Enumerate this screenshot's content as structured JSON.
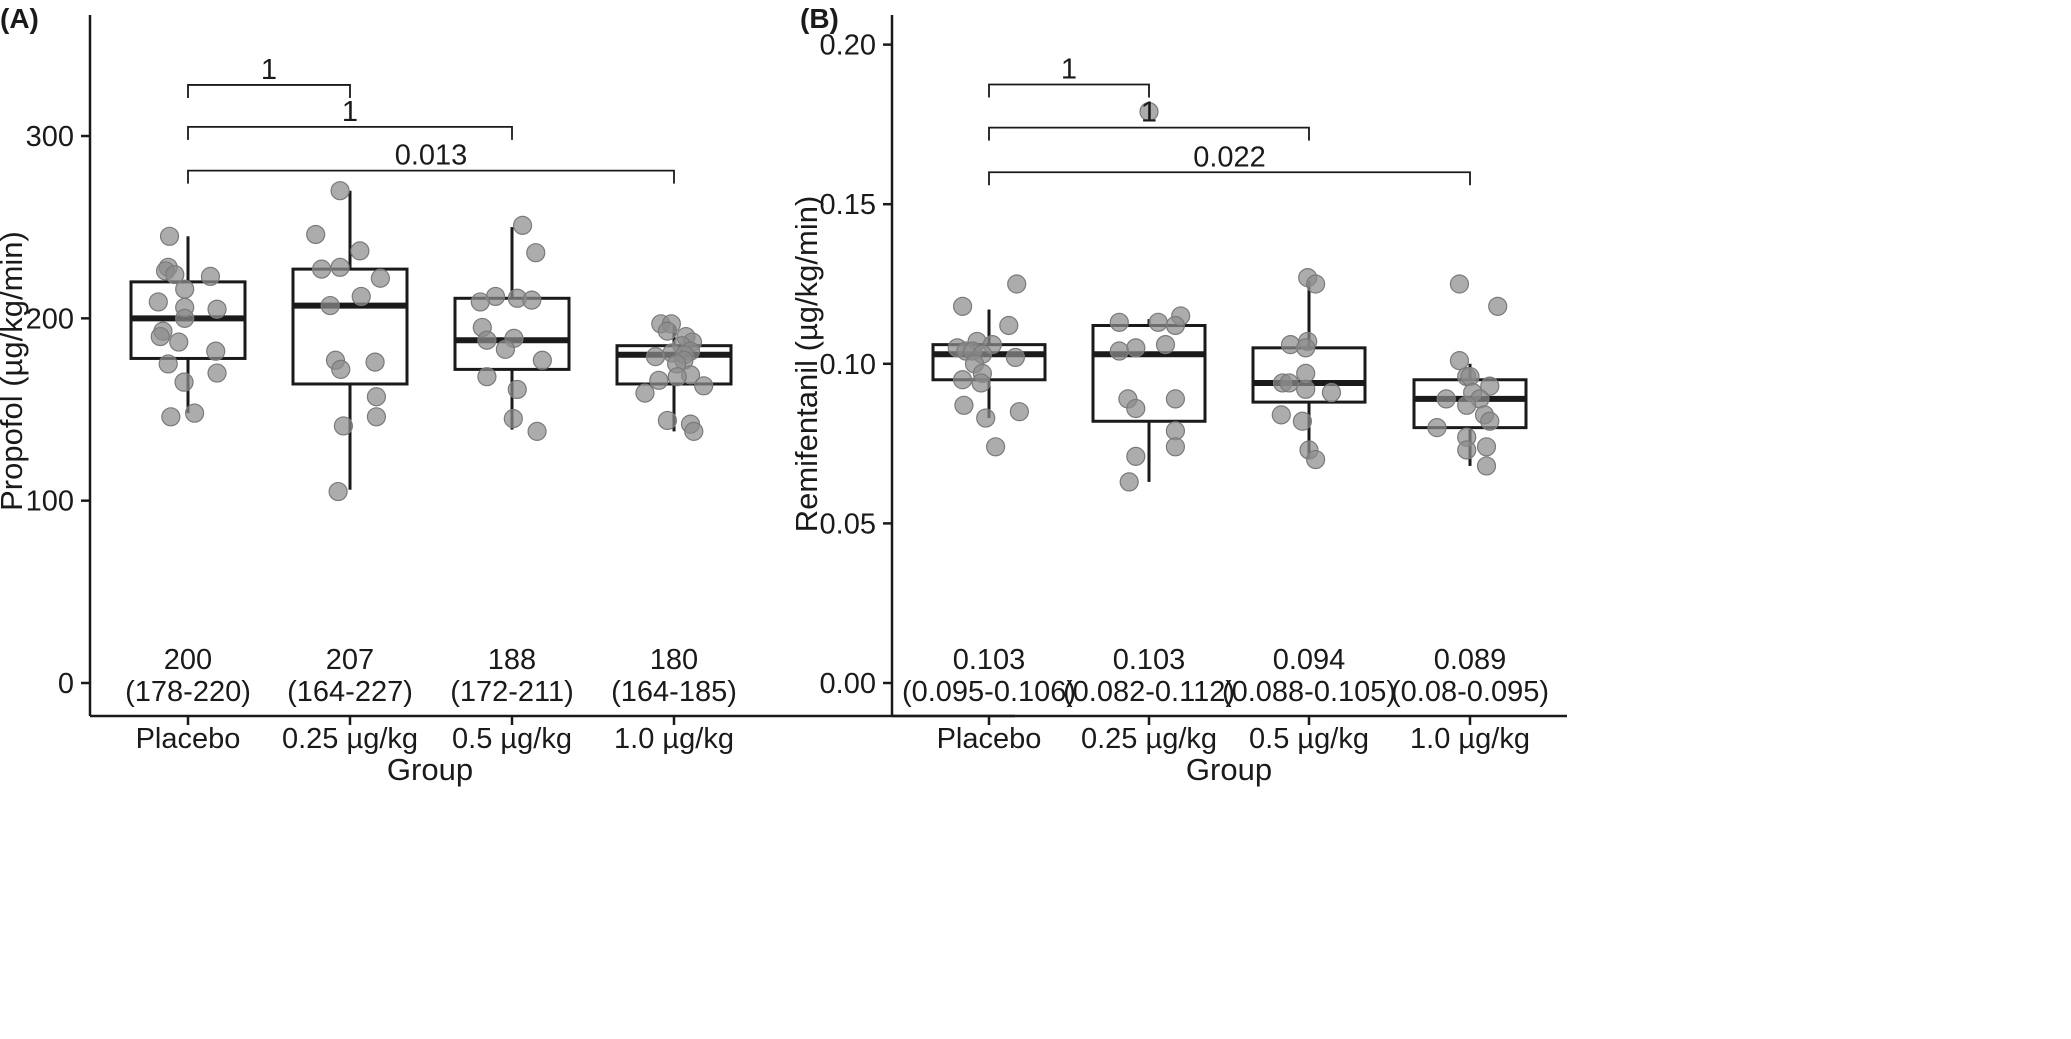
{
  "chart_data": [
    {
      "type": "box",
      "panel_label": "(A)",
      "xlabel": "Group",
      "ylabel": "Propofol (µg/kg/min)",
      "categories": [
        "Placebo",
        "0.25 µg/kg",
        "0.5 µg/kg",
        "1.0 µg/kg"
      ],
      "ylim": [
        0,
        360
      ],
      "yticks": [
        "0",
        "100",
        "200",
        "300"
      ],
      "boxes": [
        {
          "q1": 178,
          "median": 200,
          "q3": 220,
          "whisker_low": 148,
          "whisker_high": 245,
          "label_median": "200",
          "label_iqr": "(178-220)",
          "points": [
            245,
            228,
            226,
            224,
            223,
            216,
            209,
            206,
            205,
            200,
            193,
            190,
            187,
            182,
            175,
            170,
            165,
            148,
            146
          ],
          "jitter": [
            -0.28,
            -0.3,
            -0.34,
            -0.2,
            0.34,
            -0.05,
            -0.45,
            -0.05,
            0.44,
            -0.05,
            -0.38,
            -0.42,
            -0.14,
            0.42,
            -0.3,
            0.44,
            -0.06,
            0.1,
            -0.26
          ]
        },
        {
          "q1": 164,
          "median": 207,
          "q3": 227,
          "whisker_low": 106,
          "whisker_high": 270,
          "label_median": "207",
          "label_iqr": "(164-227)",
          "points": [
            270,
            246,
            237,
            228,
            227,
            222,
            212,
            207,
            177,
            176,
            172,
            157,
            146,
            141,
            105
          ],
          "jitter": [
            -0.15,
            -0.52,
            0.15,
            -0.15,
            -0.43,
            0.46,
            0.17,
            -0.3,
            -0.22,
            0.38,
            -0.14,
            0.4,
            0.4,
            -0.1,
            -0.18
          ]
        },
        {
          "q1": 172,
          "median": 188,
          "q3": 211,
          "whisker_low": 139,
          "whisker_high": 250,
          "label_median": "188",
          "label_iqr": "(172-211)",
          "points": [
            251,
            236,
            212,
            211,
            210,
            209,
            195,
            189,
            188,
            183,
            177,
            168,
            161,
            145,
            138
          ],
          "jitter": [
            0.16,
            0.36,
            -0.25,
            0.08,
            0.3,
            -0.48,
            -0.45,
            0.03,
            -0.38,
            -0.1,
            0.46,
            -0.38,
            0.08,
            0.02,
            0.38
          ]
        },
        {
          "q1": 164,
          "median": 180,
          "q3": 185,
          "whisker_low": 138,
          "whisker_high": 196,
          "label_median": "180",
          "label_iqr": "(164-185)",
          "points": [
            197,
            197,
            193,
            190,
            187,
            185,
            182,
            181,
            180,
            179,
            177,
            175,
            169,
            168,
            166,
            163,
            159,
            144,
            142,
            138
          ],
          "jitter": [
            -0.2,
            -0.04,
            -0.1,
            0.18,
            0.28,
            0.12,
            0.25,
            -0.03,
            0.16,
            -0.28,
            0.15,
            0.04,
            0.25,
            0.05,
            -0.23,
            0.45,
            -0.44,
            -0.1,
            0.25,
            0.3
          ]
        }
      ],
      "comparisons": [
        {
          "from": 0,
          "to": 1,
          "y": 328,
          "label": "1"
        },
        {
          "from": 0,
          "to": 2,
          "y": 305,
          "label": "1"
        },
        {
          "from": 0,
          "to": 3,
          "y": 281,
          "label": "0.013"
        }
      ]
    },
    {
      "type": "box",
      "panel_label": "(B)",
      "xlabel": "Group",
      "ylabel": "Remifentanil (µg/kg/min)",
      "categories": [
        "Placebo",
        "0.25 µg/kg",
        "0.5 µg/kg",
        "1.0 µg/kg"
      ],
      "ylim": [
        0,
        0.21
      ],
      "yticks": [
        "0.00",
        "0.05",
        "0.10",
        "0.15",
        "0.20"
      ],
      "boxes": [
        {
          "q1": 0.095,
          "median": 0.103,
          "q3": 0.106,
          "whisker_low": 0.083,
          "whisker_high": 0.117,
          "label_median": "0.103",
          "label_iqr": "(0.095-0.106)",
          "points": [
            0.125,
            0.118,
            0.112,
            0.107,
            0.106,
            0.105,
            0.104,
            0.104,
            0.103,
            0.102,
            0.1,
            0.097,
            0.095,
            0.094,
            0.087,
            0.085,
            0.083,
            0.074
          ],
          "jitter": [
            0.42,
            -0.4,
            0.3,
            -0.18,
            0.05,
            -0.48,
            -0.35,
            -0.25,
            -0.1,
            0.4,
            -0.22,
            -0.1,
            -0.4,
            -0.12,
            -0.38,
            0.46,
            -0.05,
            0.1
          ]
        },
        {
          "q1": 0.082,
          "median": 0.103,
          "q3": 0.112,
          "whisker_low": 0.063,
          "whisker_high": 0.114,
          "label_median": "0.103",
          "label_iqr": "(0.082-0.112)",
          "points": [
            0.179,
            0.115,
            0.113,
            0.113,
            0.112,
            0.106,
            0.105,
            0.104,
            0.089,
            0.089,
            0.086,
            0.079,
            0.074,
            0.071,
            0.063
          ],
          "jitter": [
            0.0,
            0.48,
            -0.45,
            0.14,
            0.4,
            0.25,
            -0.2,
            -0.45,
            -0.32,
            0.4,
            -0.2,
            0.4,
            0.4,
            -0.2,
            -0.3
          ]
        },
        {
          "q1": 0.088,
          "median": 0.094,
          "q3": 0.105,
          "whisker_low": 0.07,
          "whisker_high": 0.126,
          "label_median": "0.094",
          "label_iqr": "(0.088-0.105)",
          "points": [
            0.127,
            0.125,
            0.107,
            0.106,
            0.105,
            0.097,
            0.094,
            0.094,
            0.092,
            0.091,
            0.084,
            0.082,
            0.073,
            0.07
          ],
          "jitter": [
            -0.02,
            0.1,
            -0.02,
            -0.28,
            -0.05,
            -0.05,
            -0.4,
            -0.3,
            -0.05,
            0.34,
            -0.42,
            -0.1,
            0.0,
            0.1
          ]
        },
        {
          "q1": 0.08,
          "median": 0.089,
          "q3": 0.095,
          "whisker_low": 0.068,
          "whisker_high": 0.1,
          "label_median": "0.089",
          "label_iqr": "(0.08-0.095)",
          "points": [
            0.125,
            0.118,
            0.101,
            0.096,
            0.096,
            0.093,
            0.091,
            0.089,
            0.089,
            0.087,
            0.084,
            0.082,
            0.08,
            0.077,
            0.074,
            0.073,
            0.068
          ],
          "jitter": [
            -0.16,
            0.42,
            -0.16,
            -0.05,
            0.0,
            0.3,
            0.04,
            0.15,
            -0.36,
            -0.05,
            0.22,
            0.3,
            -0.5,
            -0.05,
            0.25,
            -0.05,
            0.25
          ]
        }
      ],
      "comparisons": [
        {
          "from": 0,
          "to": 1,
          "y": 0.1875,
          "label": "1"
        },
        {
          "from": 0,
          "to": 2,
          "y": 0.174,
          "label": "1"
        },
        {
          "from": 0,
          "to": 3,
          "y": 0.16,
          "label": "0.022"
        }
      ]
    }
  ]
}
